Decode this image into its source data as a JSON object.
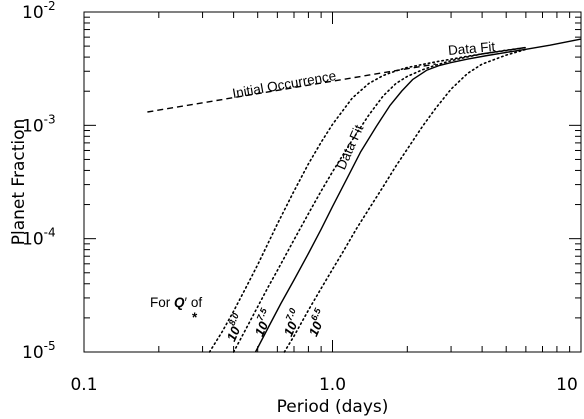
{
  "chart_data": {
    "type": "line",
    "title": "",
    "xlabel": "Period (days)",
    "ylabel": "Planet Fraction",
    "xscale": "log",
    "yscale": "log",
    "xlim": [
      0.1,
      10
    ],
    "ylim": [
      1e-05,
      0.01
    ],
    "x_tick_labels": [
      {
        "value": 0.1,
        "text": "0.1"
      },
      {
        "value": 1,
        "text": "1.0"
      },
      {
        "value": 10,
        "text": "10"
      }
    ],
    "y_tick_labels": [
      {
        "value": 0.01,
        "base": "10",
        "exp": "-2"
      },
      {
        "value": 0.001,
        "base": "10",
        "exp": "-3"
      },
      {
        "value": 0.0001,
        "base": "10",
        "exp": "-4"
      },
      {
        "value": 1e-05,
        "base": "10",
        "exp": "-5"
      }
    ],
    "grid": false,
    "legend": "none",
    "series": [
      {
        "name": "Data Fit",
        "style": "solid",
        "x": [
          0.49,
          0.55,
          0.62,
          0.7,
          0.8,
          0.9,
          1.0,
          1.15,
          1.3,
          1.5,
          1.7,
          1.9,
          2.1,
          2.4,
          2.7,
          3.0,
          3.5,
          4.2,
          5.0,
          6.0,
          7.5,
          10.0
        ],
        "y": [
          1e-05,
          1.63e-05,
          2.68e-05,
          4.32e-05,
          7.4e-05,
          0.000121,
          0.000192,
          0.000348,
          0.000587,
          0.000977,
          0.00149,
          0.00201,
          0.00253,
          0.00307,
          0.00338,
          0.00358,
          0.00384,
          0.00413,
          0.0044,
          0.00469,
          0.00509,
          0.00577
        ]
      },
      {
        "name": "Initial Occurrence",
        "style": "dashed",
        "x": [
          0.18,
          2.6
        ],
        "y": [
          0.00131,
          0.00348
        ]
      },
      {
        "name": "10^8.0",
        "style": "dotted",
        "x": [
          0.32,
          0.36,
          0.4,
          0.45,
          0.5,
          0.6,
          0.7,
          0.8,
          0.9,
          1.0,
          1.2,
          1.4,
          1.6,
          1.8,
          2.0,
          2.3,
          2.6,
          3.0,
          3.5,
          4.0,
          5.0,
          6.0
        ],
        "y": [
          1e-05,
          1.51e-05,
          2.29e-05,
          3.75e-05,
          5.89e-05,
          0.000135,
          0.000263,
          0.000457,
          0.000708,
          0.00102,
          0.00174,
          0.00234,
          0.00275,
          0.00302,
          0.00324,
          0.00344,
          0.00363,
          0.00383,
          0.00407,
          0.00427,
          0.00457,
          0.00486
        ]
      },
      {
        "name": "10^7.5",
        "style": "dotted",
        "x": [
          0.4,
          0.45,
          0.5,
          0.55,
          0.6,
          0.7,
          0.8,
          0.9,
          1.0,
          1.2,
          1.4,
          1.6,
          1.8,
          2.0,
          2.3,
          2.6,
          3.0,
          3.5,
          4.0,
          5.0,
          6.0
        ],
        "y": [
          1e-05,
          1.62e-05,
          2.51e-05,
          3.72e-05,
          5.25e-05,
          9.77e-05,
          0.000166,
          0.000263,
          0.000389,
          0.000741,
          0.00123,
          0.00182,
          0.00234,
          0.0027,
          0.00309,
          0.00339,
          0.00372,
          0.00402,
          0.00427,
          0.0046,
          0.00486
        ]
      },
      {
        "name": "10^6.5",
        "style": "dotted",
        "x": [
          0.64,
          0.7,
          0.8,
          0.9,
          1.0,
          1.1,
          1.25,
          1.4,
          1.6,
          1.8,
          2.0,
          2.3,
          2.6,
          3.0,
          3.5,
          4.0,
          5.0,
          6.0
        ],
        "y": [
          1e-05,
          1.38e-05,
          2.34e-05,
          3.63e-05,
          5.37e-05,
          7.59e-05,
          0.000123,
          0.000182,
          0.000288,
          0.000437,
          0.000617,
          0.000977,
          0.00141,
          0.00209,
          0.00288,
          0.00347,
          0.00417,
          0.00468
        ]
      }
    ],
    "annotations": {
      "data_fit_diag": "Data Fit",
      "data_fit_top": "Data Fit",
      "initial_occurrence": "Initial Occurrence",
      "for_q_prefix": "For ",
      "for_q_symbol": "Q",
      "for_q_prime": "′",
      "for_q_star": "*",
      "for_q_suffix": " of",
      "q_labels": [
        {
          "base": "10",
          "exp": "8.0"
        },
        {
          "base": "10",
          "exp": "7.5"
        },
        {
          "base": "10",
          "exp": "7.0"
        },
        {
          "base": "10",
          "exp": "6.5"
        }
      ]
    }
  }
}
